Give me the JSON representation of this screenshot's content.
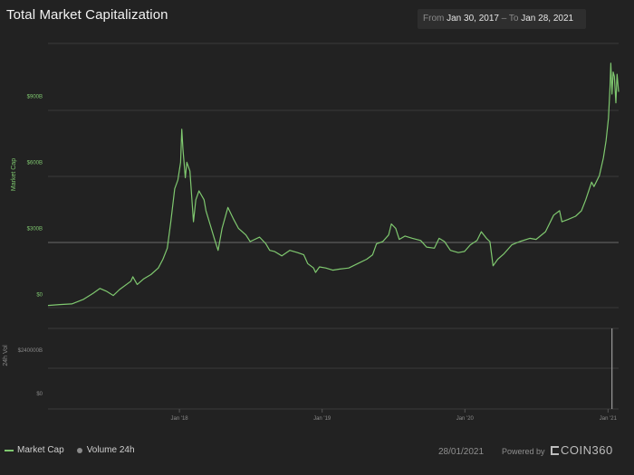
{
  "header": {
    "title": "Total Market Capitalization",
    "range": {
      "from_label": "From",
      "from_value": "Jan 30, 2017",
      "to_label": "To",
      "to_value": "Jan 28, 2021"
    }
  },
  "legend": {
    "market_cap": "Market Cap",
    "volume": "Volume 24h"
  },
  "footer": {
    "date": "28/01/2021",
    "powered_by": "Powered by",
    "brand": "COIN360"
  },
  "colors": {
    "line": "#7fc86f",
    "grid": "#3a3a3a",
    "volume": "#9a9a9a",
    "axis_text": "#7fc86f"
  },
  "chart_data": [
    {
      "type": "line",
      "title": "Total Market Capitalization",
      "ylabel": "Market Cap",
      "y_ticks": [
        {
          "value": 0,
          "label": "$0"
        },
        {
          "value": 300,
          "label": "$300B"
        },
        {
          "value": 600,
          "label": "$600B"
        },
        {
          "value": 900,
          "label": "$900B"
        }
      ],
      "ylim": [
        -60,
        1140
      ],
      "x_domain": [
        "2017-01-30",
        "2021-01-28"
      ],
      "x_ticks": [
        {
          "date": "2018-01-01",
          "label": "Jan '18"
        },
        {
          "date": "2019-01-01",
          "label": "Jan '19"
        },
        {
          "date": "2020-01-01",
          "label": "Jan '20"
        },
        {
          "date": "2021-01-01",
          "label": "Jan '21"
        }
      ],
      "series": [
        {
          "name": "Market Cap",
          "points": [
            [
              "2017-01-30",
              -50
            ],
            [
              "2017-03-01",
              -46
            ],
            [
              "2017-04-01",
              -43
            ],
            [
              "2017-05-01",
              -22
            ],
            [
              "2017-05-25",
              5
            ],
            [
              "2017-06-12",
              27
            ],
            [
              "2017-06-28",
              15
            ],
            [
              "2017-07-16",
              -5
            ],
            [
              "2017-08-01",
              22
            ],
            [
              "2017-08-30",
              60
            ],
            [
              "2017-09-04",
              80
            ],
            [
              "2017-09-15",
              45
            ],
            [
              "2017-10-01",
              70
            ],
            [
              "2017-10-20",
              90
            ],
            [
              "2017-11-08",
              120
            ],
            [
              "2017-11-20",
              160
            ],
            [
              "2017-12-01",
              210
            ],
            [
              "2017-12-10",
              330
            ],
            [
              "2017-12-20",
              480
            ],
            [
              "2017-12-28",
              520
            ],
            [
              "2018-01-04",
              600
            ],
            [
              "2018-01-07",
              750
            ],
            [
              "2018-01-10",
              660
            ],
            [
              "2018-01-16",
              530
            ],
            [
              "2018-01-20",
              600
            ],
            [
              "2018-01-28",
              560
            ],
            [
              "2018-02-06",
              330
            ],
            [
              "2018-02-12",
              430
            ],
            [
              "2018-02-20",
              470
            ],
            [
              "2018-03-05",
              430
            ],
            [
              "2018-03-10",
              380
            ],
            [
              "2018-03-20",
              320
            ],
            [
              "2018-04-01",
              250
            ],
            [
              "2018-04-10",
              200
            ],
            [
              "2018-04-20",
              300
            ],
            [
              "2018-05-05",
              395
            ],
            [
              "2018-05-20",
              340
            ],
            [
              "2018-06-01",
              300
            ],
            [
              "2018-06-20",
              270
            ],
            [
              "2018-07-01",
              240
            ],
            [
              "2018-07-25",
              260
            ],
            [
              "2018-08-10",
              230
            ],
            [
              "2018-08-20",
              200
            ],
            [
              "2018-09-01",
              195
            ],
            [
              "2018-09-20",
              175
            ],
            [
              "2018-10-10",
              200
            ],
            [
              "2018-10-30",
              190
            ],
            [
              "2018-11-15",
              180
            ],
            [
              "2018-11-25",
              140
            ],
            [
              "2018-12-10",
              120
            ],
            [
              "2018-12-15",
              100
            ],
            [
              "2018-12-25",
              125
            ],
            [
              "2019-01-10",
              120
            ],
            [
              "2019-01-28",
              110
            ],
            [
              "2019-02-15",
              115
            ],
            [
              "2019-03-10",
              120
            ],
            [
              "2019-04-02",
              140
            ],
            [
              "2019-04-25",
              160
            ],
            [
              "2019-05-10",
              180
            ],
            [
              "2019-05-20",
              230
            ],
            [
              "2019-06-05",
              240
            ],
            [
              "2019-06-20",
              270
            ],
            [
              "2019-06-27",
              320
            ],
            [
              "2019-07-08",
              300
            ],
            [
              "2019-07-17",
              250
            ],
            [
              "2019-08-01",
              265
            ],
            [
              "2019-08-20",
              255
            ],
            [
              "2019-09-10",
              245
            ],
            [
              "2019-09-25",
              215
            ],
            [
              "2019-10-15",
              210
            ],
            [
              "2019-10-27",
              255
            ],
            [
              "2019-11-10",
              240
            ],
            [
              "2019-11-25",
              200
            ],
            [
              "2019-12-15",
              190
            ],
            [
              "2019-12-31",
              195
            ],
            [
              "2020-01-15",
              225
            ],
            [
              "2020-02-01",
              245
            ],
            [
              "2020-02-12",
              285
            ],
            [
              "2020-02-25",
              255
            ],
            [
              "2020-03-05",
              240
            ],
            [
              "2020-03-13",
              130
            ],
            [
              "2020-03-25",
              160
            ],
            [
              "2020-04-10",
              185
            ],
            [
              "2020-04-30",
              225
            ],
            [
              "2020-05-20",
              240
            ],
            [
              "2020-06-15",
              255
            ],
            [
              "2020-07-01",
              250
            ],
            [
              "2020-07-25",
              285
            ],
            [
              "2020-08-15",
              360
            ],
            [
              "2020-08-30",
              380
            ],
            [
              "2020-09-05",
              330
            ],
            [
              "2020-09-20",
              340
            ],
            [
              "2020-10-10",
              355
            ],
            [
              "2020-10-25",
              380
            ],
            [
              "2020-11-05",
              430
            ],
            [
              "2020-11-20",
              510
            ],
            [
              "2020-11-26",
              490
            ],
            [
              "2020-12-10",
              540
            ],
            [
              "2020-12-20",
              620
            ],
            [
              "2020-12-27",
              700
            ],
            [
              "2021-01-02",
              800
            ],
            [
              "2021-01-06",
              940
            ],
            [
              "2021-01-08",
              1050
            ],
            [
              "2021-01-11",
              910
            ],
            [
              "2021-01-14",
              1010
            ],
            [
              "2021-01-17",
              990
            ],
            [
              "2021-01-21",
              870
            ],
            [
              "2021-01-24",
              1000
            ],
            [
              "2021-01-28",
              920
            ]
          ]
        }
      ]
    },
    {
      "type": "bar",
      "ylabel": "24h Vol",
      "y_ticks": [
        {
          "value": 0,
          "label": "$0"
        },
        {
          "value": 240,
          "label": "$240000B"
        }
      ],
      "ylim": [
        0,
        270
      ],
      "series": [
        {
          "name": "Volume 24h",
          "points": [
            [
              "2021-01-11",
              270
            ]
          ]
        }
      ]
    }
  ]
}
